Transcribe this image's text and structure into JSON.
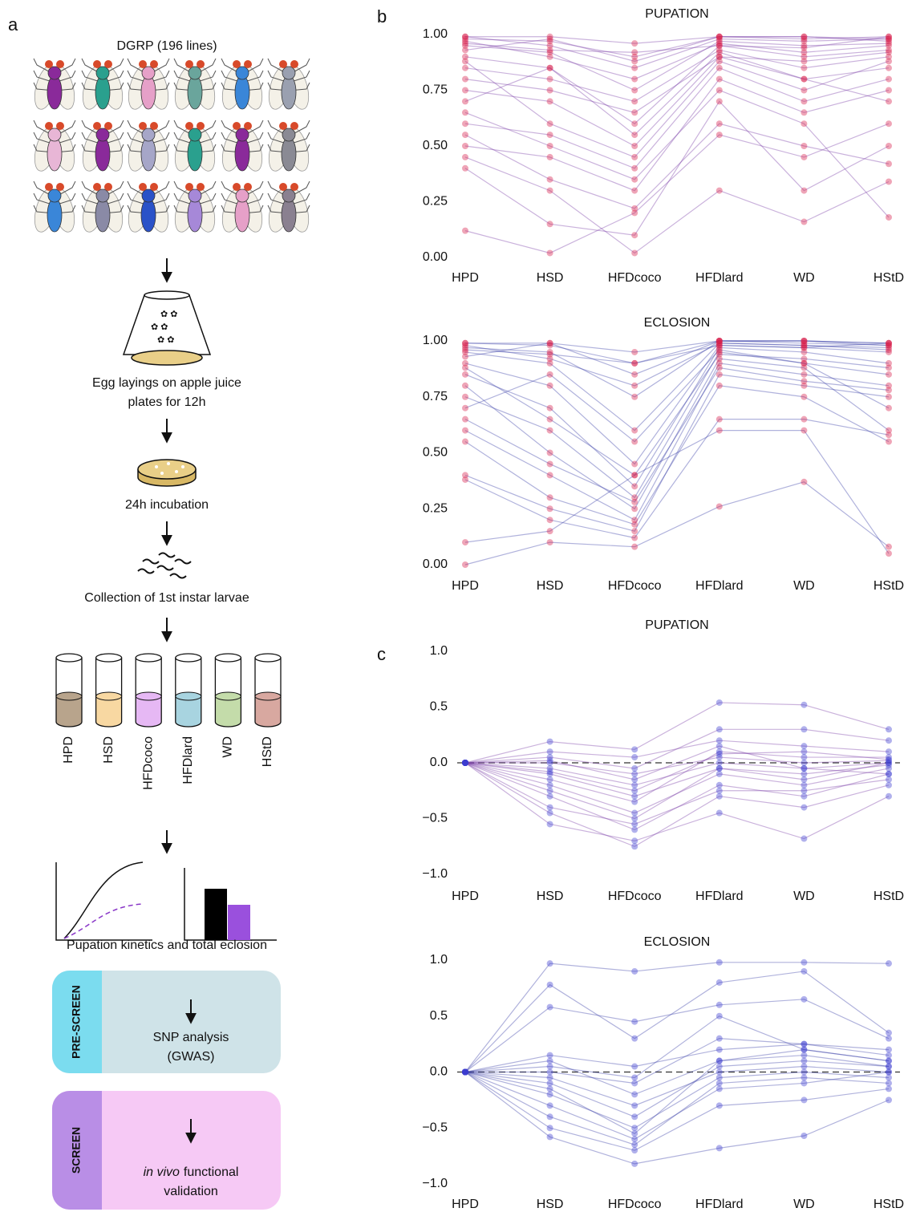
{
  "panel_labels": {
    "a": "a",
    "b": "b",
    "c": "c"
  },
  "schematic": {
    "title": "DGRP (196 lines)",
    "egg_laying": [
      "Egg layings on apple juice",
      "plates for 12h"
    ],
    "incubation": "24h incubation",
    "collection": "Collection of 1st instar larvae",
    "diets": [
      "HPD",
      "HSD",
      "HFDcoco",
      "HFDlard",
      "WD",
      "HStD"
    ],
    "readout": "Pupation kinetics and total eclosion",
    "pre_screen": {
      "tab": "PRE-SCREEN",
      "lines": [
        "SNP analysis",
        "(GWAS)"
      ]
    },
    "screen": {
      "tab": "SCREEN",
      "italic": "in vivo",
      "lines": [
        "functional",
        "validation"
      ]
    }
  },
  "chart_data": [
    {
      "type": "line",
      "title": "PUPATION",
      "categories": [
        "HPD",
        "HSD",
        "HFDcoco",
        "HFDlard",
        "WD",
        "HStD"
      ],
      "ylim": [
        0,
        1
      ],
      "yticks": [
        {
          "value": 0,
          "label": "0.00"
        },
        0.25,
        {
          "value": 0.5,
          "label": "0.50"
        },
        0.75,
        {
          "value": 1,
          "label": "1.00"
        }
      ],
      "line_color": "#7b3fa8",
      "point_color": "#d81e4b",
      "zero_line": false,
      "series": [
        {
          "values": [
            0.98,
            0.97,
            0.9,
            0.99,
            0.98,
            0.99
          ]
        },
        {
          "values": [
            0.95,
            0.92,
            0.75,
            0.97,
            0.95,
            0.96
          ]
        },
        {
          "values": [
            0.9,
            0.85,
            0.6,
            0.95,
            0.9,
            0.93
          ]
        },
        {
          "values": [
            0.85,
            0.8,
            0.7,
            0.93,
            0.85,
            0.9
          ]
        },
        {
          "values": [
            0.99,
            0.95,
            0.85,
            0.98,
            0.97,
            0.98
          ]
        },
        {
          "values": [
            0.75,
            0.7,
            0.5,
            0.9,
            0.8,
            0.85
          ]
        },
        {
          "values": [
            0.6,
            0.55,
            0.4,
            0.85,
            0.7,
            0.8
          ]
        },
        {
          "values": [
            0.5,
            0.45,
            0.3,
            0.8,
            0.65,
            0.75
          ]
        },
        {
          "values": [
            0.12,
            0.02,
            0.2,
            0.55,
            0.45,
            0.6
          ]
        },
        {
          "values": [
            0.4,
            0.15,
            0.1,
            0.7,
            0.3,
            0.5
          ]
        },
        {
          "values": [
            0.97,
            0.9,
            0.8,
            0.96,
            0.92,
            0.95
          ]
        },
        {
          "values": [
            0.93,
            0.98,
            0.88,
            0.99,
            0.99,
            0.97
          ]
        },
        {
          "values": [
            0.8,
            0.75,
            0.65,
            0.9,
            0.88,
            0.92
          ]
        },
        {
          "values": [
            0.7,
            0.85,
            0.55,
            0.92,
            0.8,
            0.7
          ]
        },
        {
          "values": [
            0.88,
            0.6,
            0.45,
            0.88,
            0.75,
            0.88
          ]
        },
        {
          "values": [
            0.55,
            0.35,
            0.22,
            0.6,
            0.5,
            0.42
          ]
        },
        {
          "values": [
            0.45,
            0.3,
            0.02,
            0.3,
            0.16,
            0.34
          ]
        },
        {
          "values": [
            0.96,
            0.93,
            0.92,
            0.95,
            0.94,
            0.99
          ]
        },
        {
          "values": [
            0.65,
            0.5,
            0.35,
            0.75,
            0.6,
            0.18
          ]
        },
        {
          "values": [
            0.99,
            0.99,
            0.96,
            0.99,
            0.99,
            0.98
          ]
        }
      ]
    },
    {
      "type": "line",
      "title": "ECLOSION",
      "categories": [
        "HPD",
        "HSD",
        "HFDcoco",
        "HFDlard",
        "WD",
        "HStD"
      ],
      "ylim": [
        0,
        1
      ],
      "yticks": [
        {
          "value": 0,
          "label": "0.00"
        },
        0.25,
        {
          "value": 0.5,
          "label": "0.50"
        },
        0.75,
        {
          "value": 1,
          "label": "1.00"
        }
      ],
      "line_color": "#3a3fa8",
      "point_color": "#d81e4b",
      "zero_line": false,
      "series": [
        {
          "values": [
            0.99,
            0.98,
            0.9,
            1.0,
            1.0,
            0.99
          ]
        },
        {
          "values": [
            0.95,
            0.9,
            0.6,
            0.99,
            0.98,
            0.97
          ]
        },
        {
          "values": [
            0.9,
            0.8,
            0.45,
            0.98,
            0.97,
            0.95
          ]
        },
        {
          "values": [
            0.85,
            0.7,
            0.35,
            0.97,
            0.95,
            0.9
          ]
        },
        {
          "values": [
            0.97,
            0.95,
            0.75,
            1.0,
            0.99,
            0.98
          ]
        },
        {
          "values": [
            0.75,
            0.6,
            0.3,
            0.95,
            0.9,
            0.85
          ]
        },
        {
          "values": [
            0.6,
            0.4,
            0.2,
            0.9,
            0.85,
            0.8
          ]
        },
        {
          "values": [
            0.4,
            0.25,
            0.15,
            0.85,
            0.8,
            0.75
          ]
        },
        {
          "values": [
            0.0,
            0.1,
            0.08,
            0.26,
            0.37,
            0.08
          ]
        },
        {
          "values": [
            0.1,
            0.15,
            0.4,
            0.6,
            0.6,
            0.05
          ]
        },
        {
          "values": [
            0.98,
            0.92,
            0.8,
            0.99,
            0.98,
            0.96
          ]
        },
        {
          "values": [
            0.93,
            0.99,
            0.85,
            1.0,
            1.0,
            0.98
          ]
        },
        {
          "values": [
            0.8,
            0.5,
            0.25,
            0.92,
            0.88,
            0.6
          ]
        },
        {
          "values": [
            0.7,
            0.85,
            0.55,
            0.96,
            0.9,
            0.7
          ]
        },
        {
          "values": [
            0.88,
            0.65,
            0.4,
            0.94,
            0.92,
            0.88
          ]
        },
        {
          "values": [
            0.55,
            0.3,
            0.18,
            0.8,
            0.75,
            0.55
          ]
        },
        {
          "values": [
            0.38,
            0.2,
            0.12,
            0.65,
            0.65,
            0.58
          ]
        },
        {
          "values": [
            0.96,
            0.94,
            0.9,
            0.98,
            0.97,
            0.99
          ]
        },
        {
          "values": [
            0.65,
            0.45,
            0.28,
            0.88,
            0.82,
            0.78
          ]
        },
        {
          "values": [
            0.99,
            0.99,
            0.95,
            1.0,
            1.0,
            0.99
          ]
        }
      ]
    },
    {
      "type": "line",
      "title": "PUPATION",
      "categories": [
        "HPD",
        "HSD",
        "HFDcoco",
        "HFDlard",
        "WD",
        "HStD"
      ],
      "ylim": [
        -1,
        1
      ],
      "yticks": [
        {
          "value": -1,
          "label": "−1.0"
        },
        {
          "value": -0.5,
          "label": "−0.5"
        },
        {
          "value": 0,
          "label": "0.0"
        },
        0.5,
        {
          "value": 1,
          "label": "1.0"
        }
      ],
      "line_color": "#7b3fa8",
      "point_color": "#3d3ccf",
      "zero_line": true,
      "series": [
        {
          "values": [
            0,
            -0.05,
            -0.2,
            0.0,
            -0.05,
            0.0
          ]
        },
        {
          "values": [
            0,
            -0.1,
            -0.3,
            -0.05,
            -0.1,
            -0.02
          ]
        },
        {
          "values": [
            0,
            0.1,
            0.05,
            0.2,
            0.15,
            0.1
          ]
        },
        {
          "values": [
            0,
            -0.2,
            -0.45,
            -0.1,
            -0.2,
            -0.05
          ]
        },
        {
          "values": [
            0,
            0.0,
            -0.1,
            0.05,
            0.0,
            0.02
          ]
        },
        {
          "values": [
            0,
            -0.3,
            -0.6,
            -0.2,
            -0.3,
            -0.1
          ]
        },
        {
          "values": [
            0,
            -0.45,
            -0.75,
            -0.3,
            -0.4,
            -0.2
          ]
        },
        {
          "values": [
            0,
            0.19,
            0.12,
            0.54,
            0.52,
            0.3
          ]
        },
        {
          "values": [
            0,
            -0.55,
            -0.7,
            -0.45,
            -0.68,
            -0.3
          ]
        },
        {
          "values": [
            0,
            -0.15,
            -0.35,
            0.1,
            0.05,
            0.05
          ]
        },
        {
          "values": [
            0,
            0.05,
            -0.05,
            0.3,
            0.3,
            0.2
          ]
        },
        {
          "values": [
            0,
            -0.25,
            -0.5,
            -0.05,
            -0.15,
            0.0
          ]
        },
        {
          "values": [
            0,
            -0.08,
            -0.25,
            0.08,
            0.1,
            0.03
          ]
        },
        {
          "values": [
            0,
            -0.4,
            -0.55,
            -0.25,
            -0.25,
            -0.15
          ]
        },
        {
          "values": [
            0,
            0.02,
            -0.15,
            0.15,
            -0.05,
            -0.1
          ]
        }
      ]
    },
    {
      "type": "line",
      "title": "ECLOSION",
      "categories": [
        "HPD",
        "HSD",
        "HFDcoco",
        "HFDlard",
        "WD",
        "HStD"
      ],
      "ylim": [
        -1,
        1
      ],
      "yticks": [
        {
          "value": -1,
          "label": "−1.0"
        },
        {
          "value": -0.5,
          "label": "−0.5"
        },
        {
          "value": 0,
          "label": "0.0"
        },
        0.5,
        {
          "value": 1,
          "label": "1.0"
        }
      ],
      "line_color": "#3a3fa8",
      "point_color": "#3d3ccf",
      "zero_line": true,
      "series": [
        {
          "values": [
            0,
            0.97,
            0.9,
            0.98,
            0.98,
            0.97
          ]
        },
        {
          "values": [
            0,
            0.78,
            0.3,
            0.8,
            0.9,
            0.35
          ]
        },
        {
          "values": [
            0,
            0.58,
            0.45,
            0.6,
            0.65,
            0.3
          ]
        },
        {
          "values": [
            0,
            0.1,
            -0.2,
            0.1,
            0.2,
            0.1
          ]
        },
        {
          "values": [
            0,
            -0.05,
            -0.3,
            0.0,
            0.05,
            0.0
          ]
        },
        {
          "values": [
            0,
            -0.2,
            -0.5,
            -0.05,
            0.0,
            -0.05
          ]
        },
        {
          "values": [
            0,
            -0.4,
            -0.65,
            -0.1,
            -0.05,
            -0.1
          ]
        },
        {
          "values": [
            0,
            -0.58,
            -0.82,
            -0.68,
            -0.57,
            -0.25
          ]
        },
        {
          "values": [
            0,
            0.15,
            0.05,
            0.2,
            0.25,
            0.15
          ]
        },
        {
          "values": [
            0,
            -0.1,
            -0.4,
            0.05,
            0.1,
            0.05
          ]
        },
        {
          "values": [
            0,
            -0.3,
            -0.6,
            -0.15,
            -0.1,
            0.0
          ]
        },
        {
          "values": [
            0,
            0.0,
            -0.1,
            0.3,
            0.25,
            0.2
          ]
        },
        {
          "values": [
            0,
            -0.5,
            -0.7,
            -0.3,
            -0.25,
            -0.15
          ]
        },
        {
          "values": [
            0,
            0.05,
            -0.05,
            0.5,
            0.2,
            0.1
          ]
        },
        {
          "values": [
            0,
            -0.15,
            -0.55,
            0.1,
            0.15,
            0.05
          ]
        }
      ]
    }
  ]
}
